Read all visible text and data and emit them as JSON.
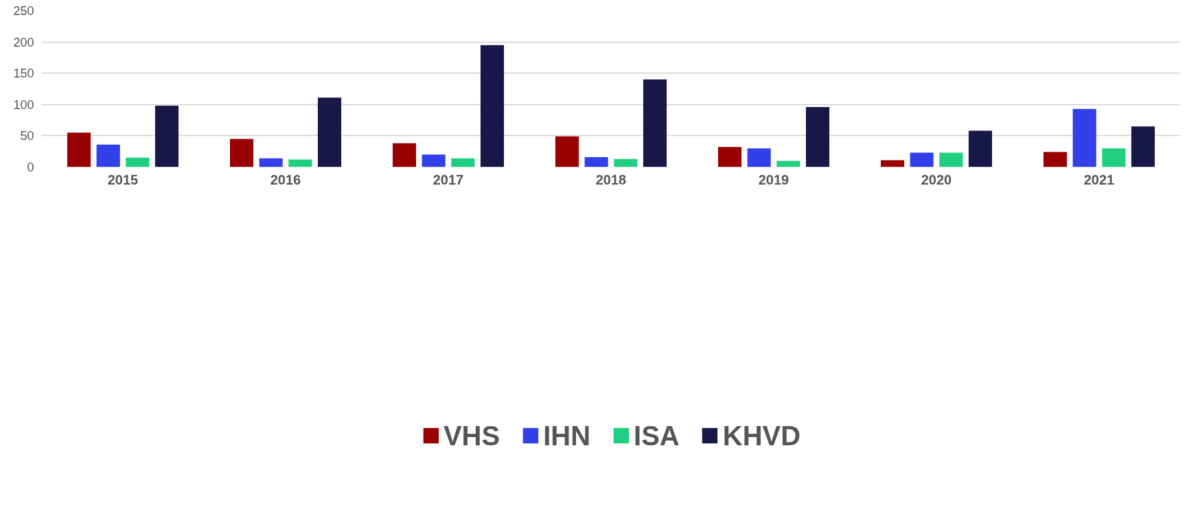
{
  "chart_data": {
    "type": "bar",
    "categories": [
      "2015",
      "2016",
      "2017",
      "2018",
      "2019",
      "2020",
      "2021"
    ],
    "series": [
      {
        "name": "VHS",
        "color": "#990000",
        "values": [
          55,
          45,
          38,
          49,
          32,
          11,
          24
        ]
      },
      {
        "name": "IHN",
        "color": "#3140e8",
        "values": [
          36,
          14,
          20,
          16,
          30,
          23,
          93
        ]
      },
      {
        "name": "ISA",
        "color": "#20d080",
        "values": [
          15,
          12,
          14,
          13,
          10,
          23,
          30
        ]
      },
      {
        "name": "KHVD",
        "color": "#181848",
        "values": [
          98,
          111,
          195,
          140,
          96,
          58,
          65
        ]
      }
    ],
    "ylim": [
      0,
      250
    ],
    "yticks": [
      0,
      50,
      100,
      150,
      200,
      250
    ],
    "grid": "y",
    "legend": "bottom"
  }
}
